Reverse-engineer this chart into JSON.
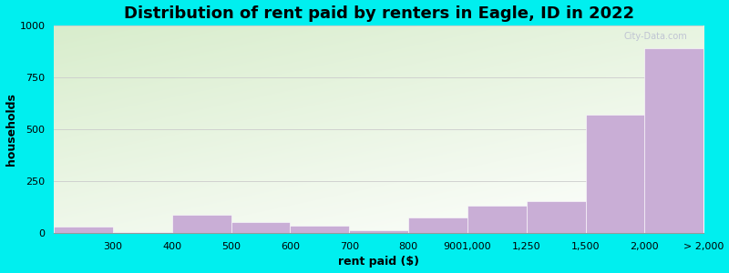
{
  "title": "Distribution of rent paid by renters in Eagle, ID in 2022",
  "xlabel": "rent paid ($)",
  "ylabel": "households",
  "bin_edges": [
    0,
    1,
    2,
    3,
    4,
    5,
    6,
    7,
    8,
    9,
    10,
    11
  ],
  "tick_positions": [
    0,
    1,
    2,
    3,
    4,
    5,
    6,
    7,
    8,
    9,
    10,
    11
  ],
  "tick_labels": [
    "",
    "300",
    "400",
    "500",
    "600",
    "700",
    "800",
    "9001,000",
    "1,250",
    "1,500",
    "2,000",
    "> 2,000"
  ],
  "values": [
    30,
    5,
    90,
    55,
    35,
    15,
    75,
    130,
    155,
    570,
    890
  ],
  "bar_color": "#c9aed6",
  "background_color_top": "#d8edcc",
  "background_color_bottom": "#f5fbf5",
  "outer_background": "#00efef",
  "ylim": [
    0,
    1000
  ],
  "yticks": [
    0,
    250,
    500,
    750,
    1000
  ],
  "title_fontsize": 13,
  "axis_label_fontsize": 9,
  "tick_fontsize": 8,
  "watermark": "City-Data.com"
}
